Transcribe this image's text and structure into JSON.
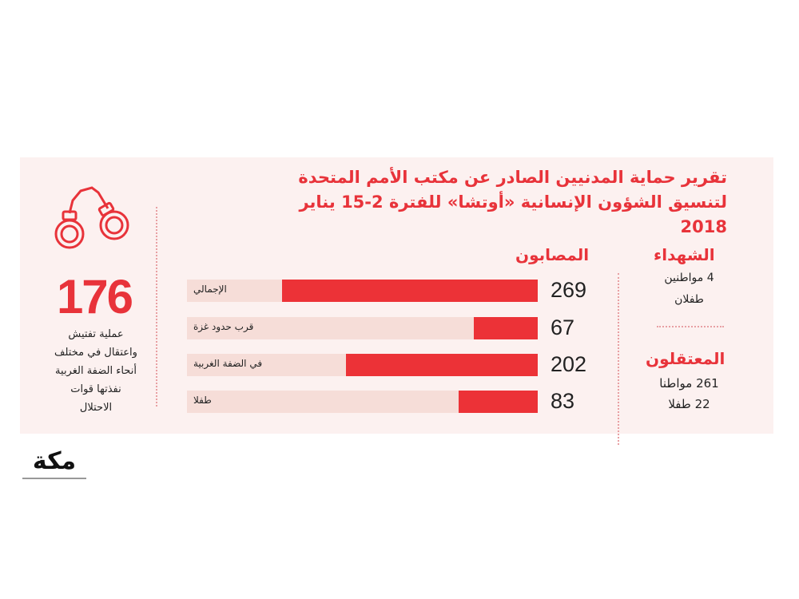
{
  "title": {
    "line1": "تقرير حماية المدنيين الصادر عن مكتب الأمم المتحدة",
    "line2": "لتنسيق الشؤون الإنسانية «أوتشا» للفترة 2-15 يناير 2018"
  },
  "colors": {
    "accent": "#ec3237",
    "track": "#f6ddd8",
    "background": "#fcf1f0"
  },
  "chart_data": {
    "type": "bar",
    "title": "المصابون",
    "orientation": "horizontal",
    "categories": [
      "الإجمالي",
      "قرب حدود غزة",
      "في الضفة الغربية",
      "طفلا"
    ],
    "values": [
      269,
      67,
      202,
      83
    ],
    "value_labels": [
      "269",
      "67",
      "202",
      "83"
    ]
  },
  "martyrs": {
    "heading": "الشهداء",
    "line1": "4 مواطنين",
    "line2": "طفلان"
  },
  "detainees": {
    "heading": "المعتقلون",
    "line1": "261 مواطنا",
    "line2": "22 طفلا"
  },
  "raids": {
    "icon": "handcuffs-icon",
    "number": "176",
    "lines": [
      "عملية تفتيش",
      "واعتقال في مختلف",
      "أنحاء الضفة الغربية",
      "نفذتها قوات",
      "الاحتلال"
    ]
  },
  "logo": {
    "text": "مكة"
  }
}
